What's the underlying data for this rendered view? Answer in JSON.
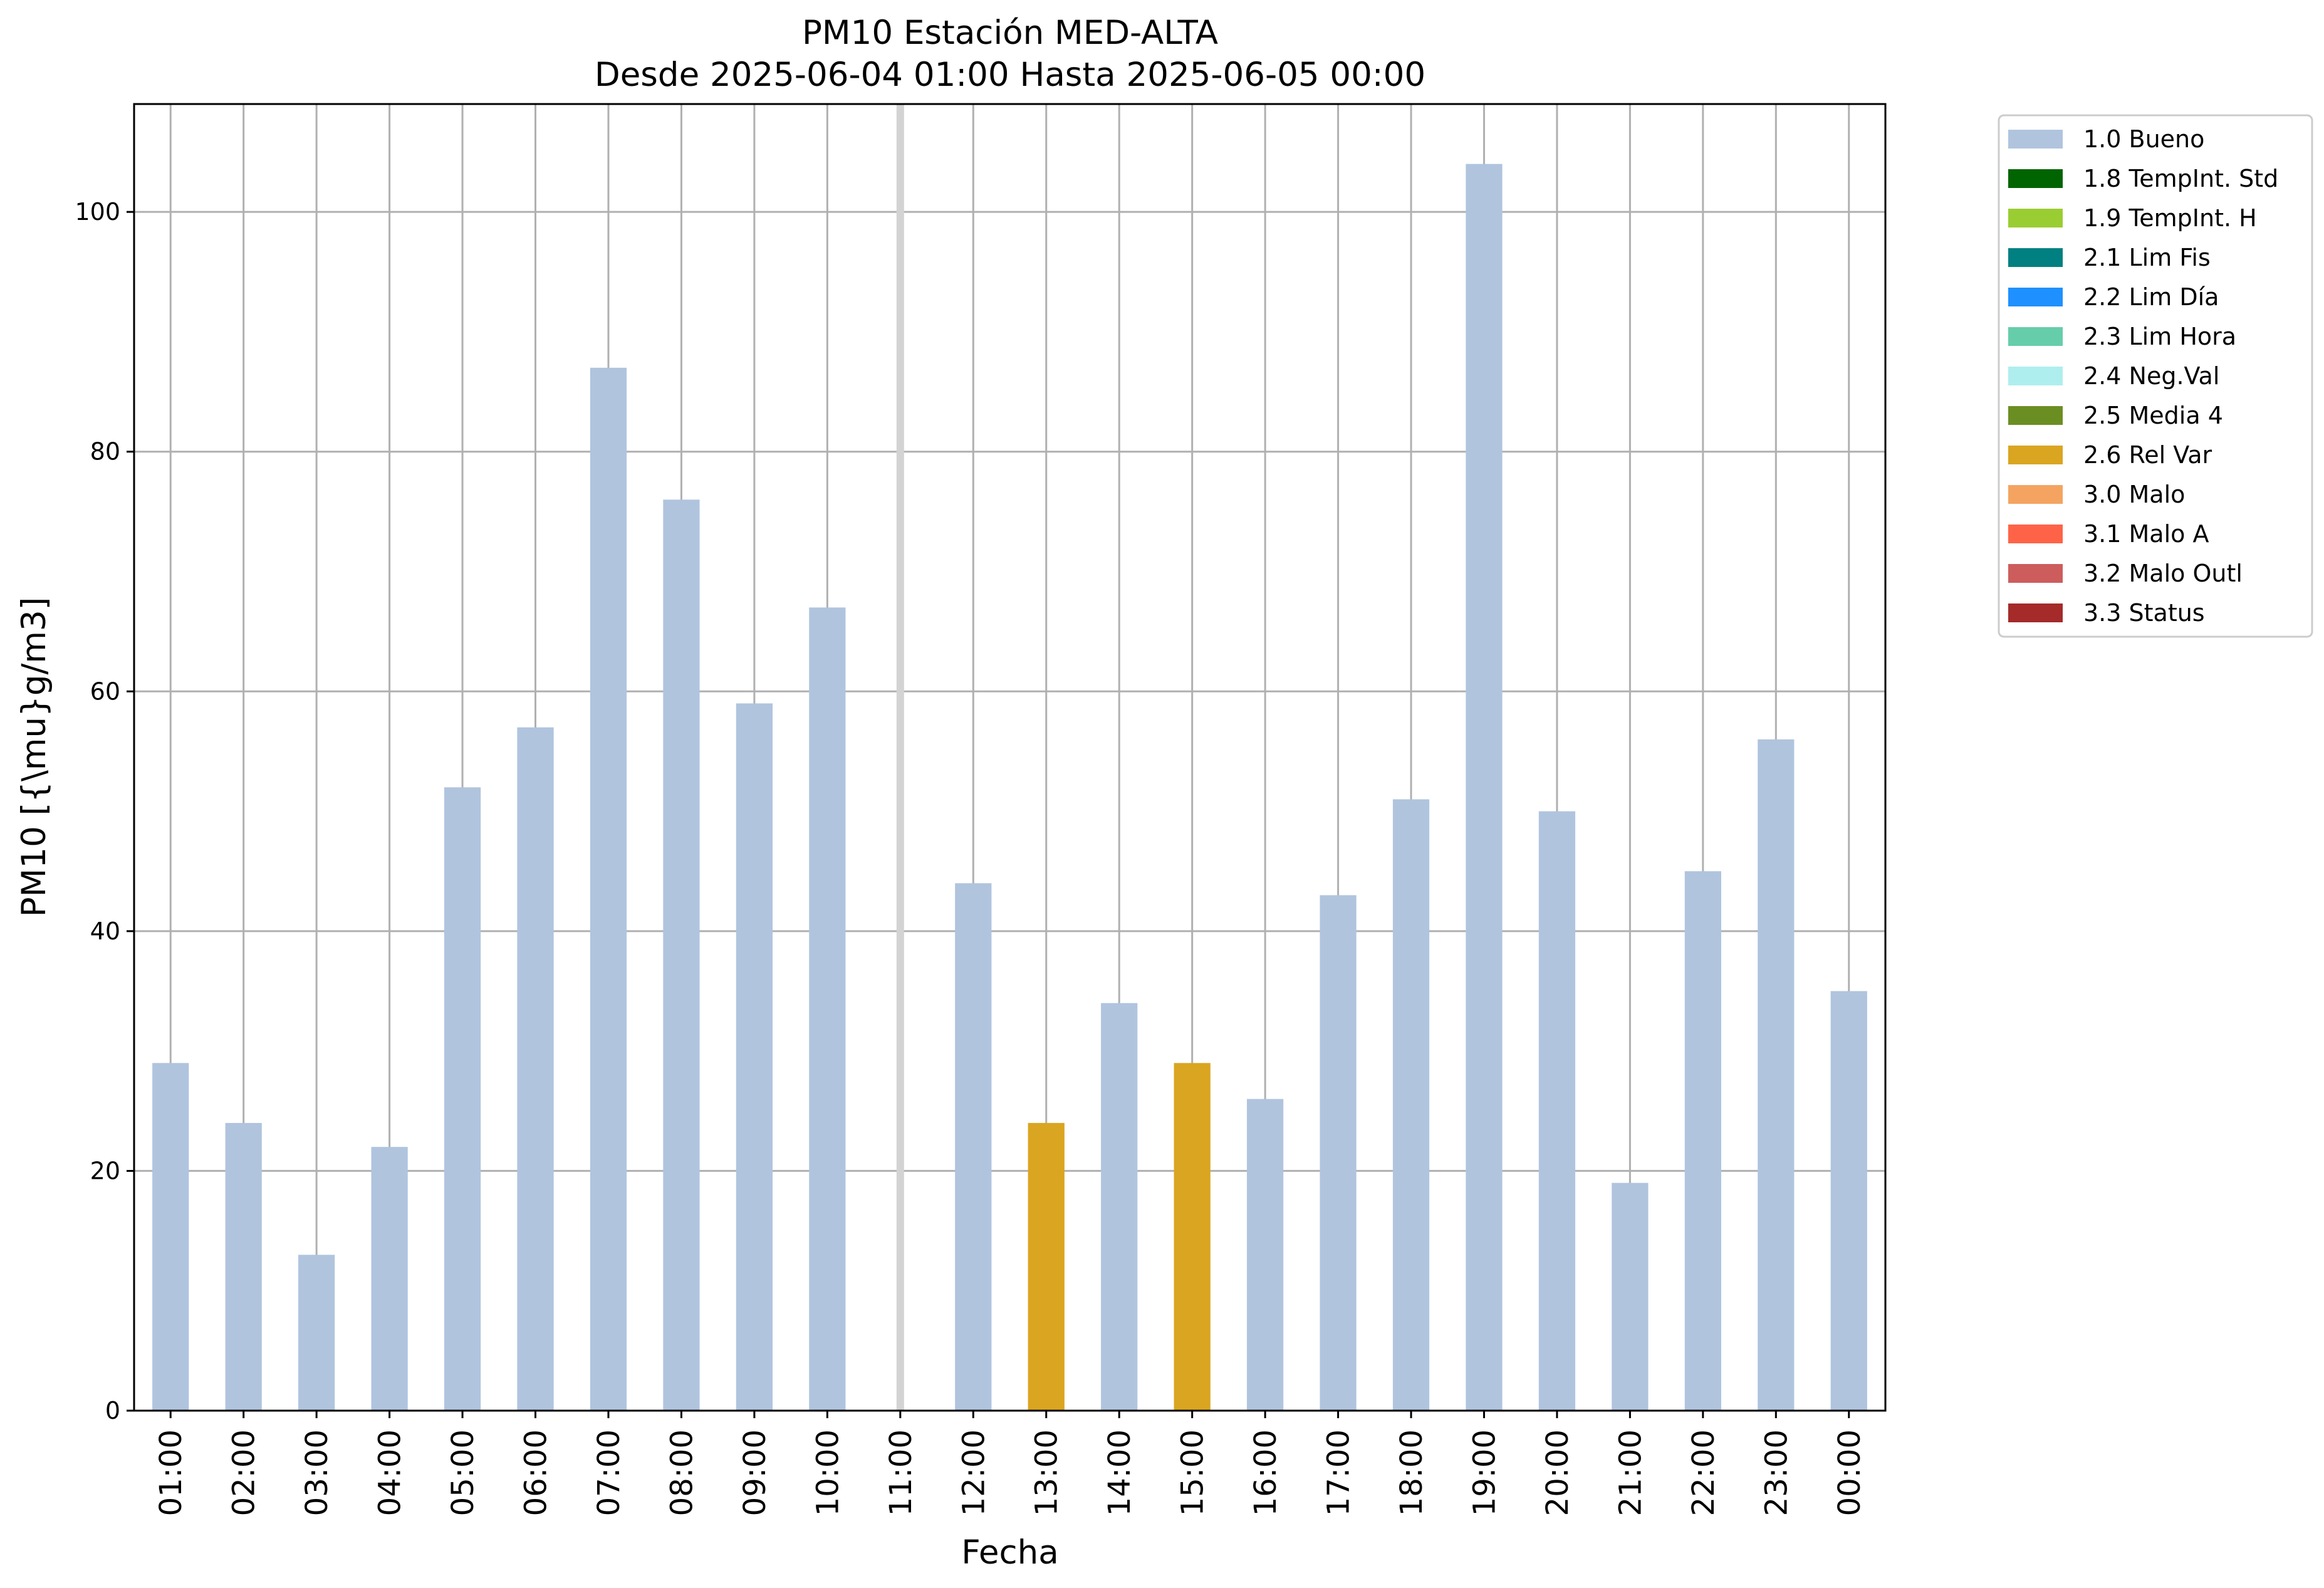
{
  "chart_data": {
    "type": "bar",
    "title": "PM10 Estación MED-ALTA",
    "subtitle": "Desde 2025-06-04 01:00 Hasta 2025-06-05 00:00",
    "xlabel": "Fecha",
    "ylabel": "PM10 [{\\mu}g/m3]",
    "ylim": [
      0,
      109
    ],
    "yticks": [
      0,
      20,
      40,
      60,
      80,
      100
    ],
    "grid": true,
    "legend_position": "outside-top-right",
    "categories": [
      "01:00",
      "02:00",
      "03:00",
      "04:00",
      "05:00",
      "06:00",
      "07:00",
      "08:00",
      "09:00",
      "10:00",
      "11:00",
      "12:00",
      "13:00",
      "14:00",
      "15:00",
      "16:00",
      "17:00",
      "18:00",
      "19:00",
      "20:00",
      "21:00",
      "22:00",
      "23:00",
      "00:00"
    ],
    "values": [
      29,
      24,
      13,
      22,
      52,
      57,
      87,
      76,
      59,
      67,
      null,
      44,
      24,
      34,
      29,
      26,
      43,
      51,
      104,
      50,
      19,
      45,
      56,
      35
    ],
    "flags": [
      "1.0 Bueno",
      "1.0 Bueno",
      "1.0 Bueno",
      "1.0 Bueno",
      "1.0 Bueno",
      "1.0 Bueno",
      "1.0 Bueno",
      "1.0 Bueno",
      "1.0 Bueno",
      "1.0 Bueno",
      null,
      "1.0 Bueno",
      "2.6 Rel Var",
      "1.0 Bueno",
      "2.6 Rel Var",
      "1.0 Bueno",
      "1.0 Bueno",
      "1.0 Bueno",
      "1.0 Bueno",
      "1.0 Bueno",
      "1.0 Bueno",
      "1.0 Bueno",
      "1.0 Bueno",
      "1.0 Bueno"
    ],
    "missing_marker_category": "11:00",
    "legend": [
      {
        "label": "1.0 Bueno",
        "color": "#b0c4de"
      },
      {
        "label": "1.8 TempInt. Std",
        "color": "#006400"
      },
      {
        "label": "1.9 TempInt. H",
        "color": "#9acd32"
      },
      {
        "label": "2.1 Lim Fis",
        "color": "#008080"
      },
      {
        "label": "2.2 Lim Día",
        "color": "#1e90ff"
      },
      {
        "label": "2.3 Lim Hora",
        "color": "#66cdaa"
      },
      {
        "label": "2.4 Neg.Val",
        "color": "#afeeee"
      },
      {
        "label": "2.5 Media 4",
        "color": "#6b8e23"
      },
      {
        "label": "2.6 Rel Var",
        "color": "#daa520"
      },
      {
        "label": "3.0 Malo",
        "color": "#f4a460"
      },
      {
        "label": "3.1 Malo A",
        "color": "#ff6347"
      },
      {
        "label": "3.2 Malo Outl",
        "color": "#cd5c5c"
      },
      {
        "label": "3.3 Status",
        "color": "#a52a2a"
      }
    ],
    "colors": {
      "grid": "#b0b0b0",
      "missing_marker": "#d3d3d3",
      "axis": "#000000"
    }
  }
}
